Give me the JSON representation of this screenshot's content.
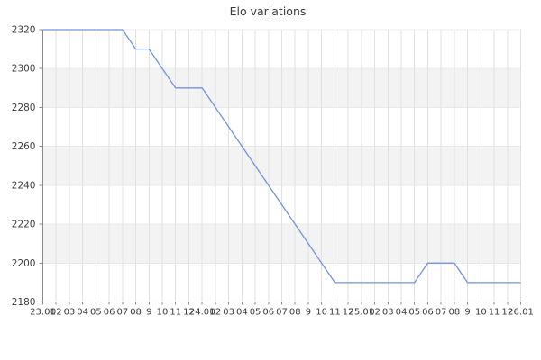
{
  "chart_data": {
    "type": "line",
    "title": "Elo variations",
    "x_labels": [
      "23.01",
      "02",
      "03",
      "04",
      "05",
      "06",
      "07",
      "08",
      "9",
      "10",
      "11",
      "12",
      "24.01",
      "02",
      "03",
      "04",
      "05",
      "06",
      "07",
      "08",
      "9",
      "10",
      "11",
      "12",
      "25.01",
      "02",
      "03",
      "04",
      "05",
      "06",
      "07",
      "08",
      "9",
      "10",
      "11",
      "12",
      "26.01"
    ],
    "y_ticks": [
      2320,
      2300,
      2280,
      2260,
      2240,
      2220,
      2200,
      2180
    ],
    "ylim": [
      2180,
      2320
    ],
    "series": [
      {
        "name": "Elo",
        "points": [
          [
            0,
            2320
          ],
          [
            6,
            2320
          ],
          [
            7,
            2310
          ],
          [
            8,
            2310
          ],
          [
            10,
            2290
          ],
          [
            12,
            2290
          ],
          [
            22,
            2190
          ],
          [
            28,
            2190
          ],
          [
            29,
            2200
          ],
          [
            31,
            2200
          ],
          [
            32,
            2190
          ],
          [
            36,
            2190
          ]
        ]
      }
    ],
    "legend": "none",
    "grid": "vertical lines + alternating horizontal bands",
    "colors": {
      "line": "#7292e4",
      "vertical_grid": "#e2e2e2",
      "band": "#f3f3f3",
      "band_edge": "#e9e9e9",
      "axis": "#8a8a8a",
      "text": "#3c3c3c",
      "background": "#ffffff"
    }
  }
}
